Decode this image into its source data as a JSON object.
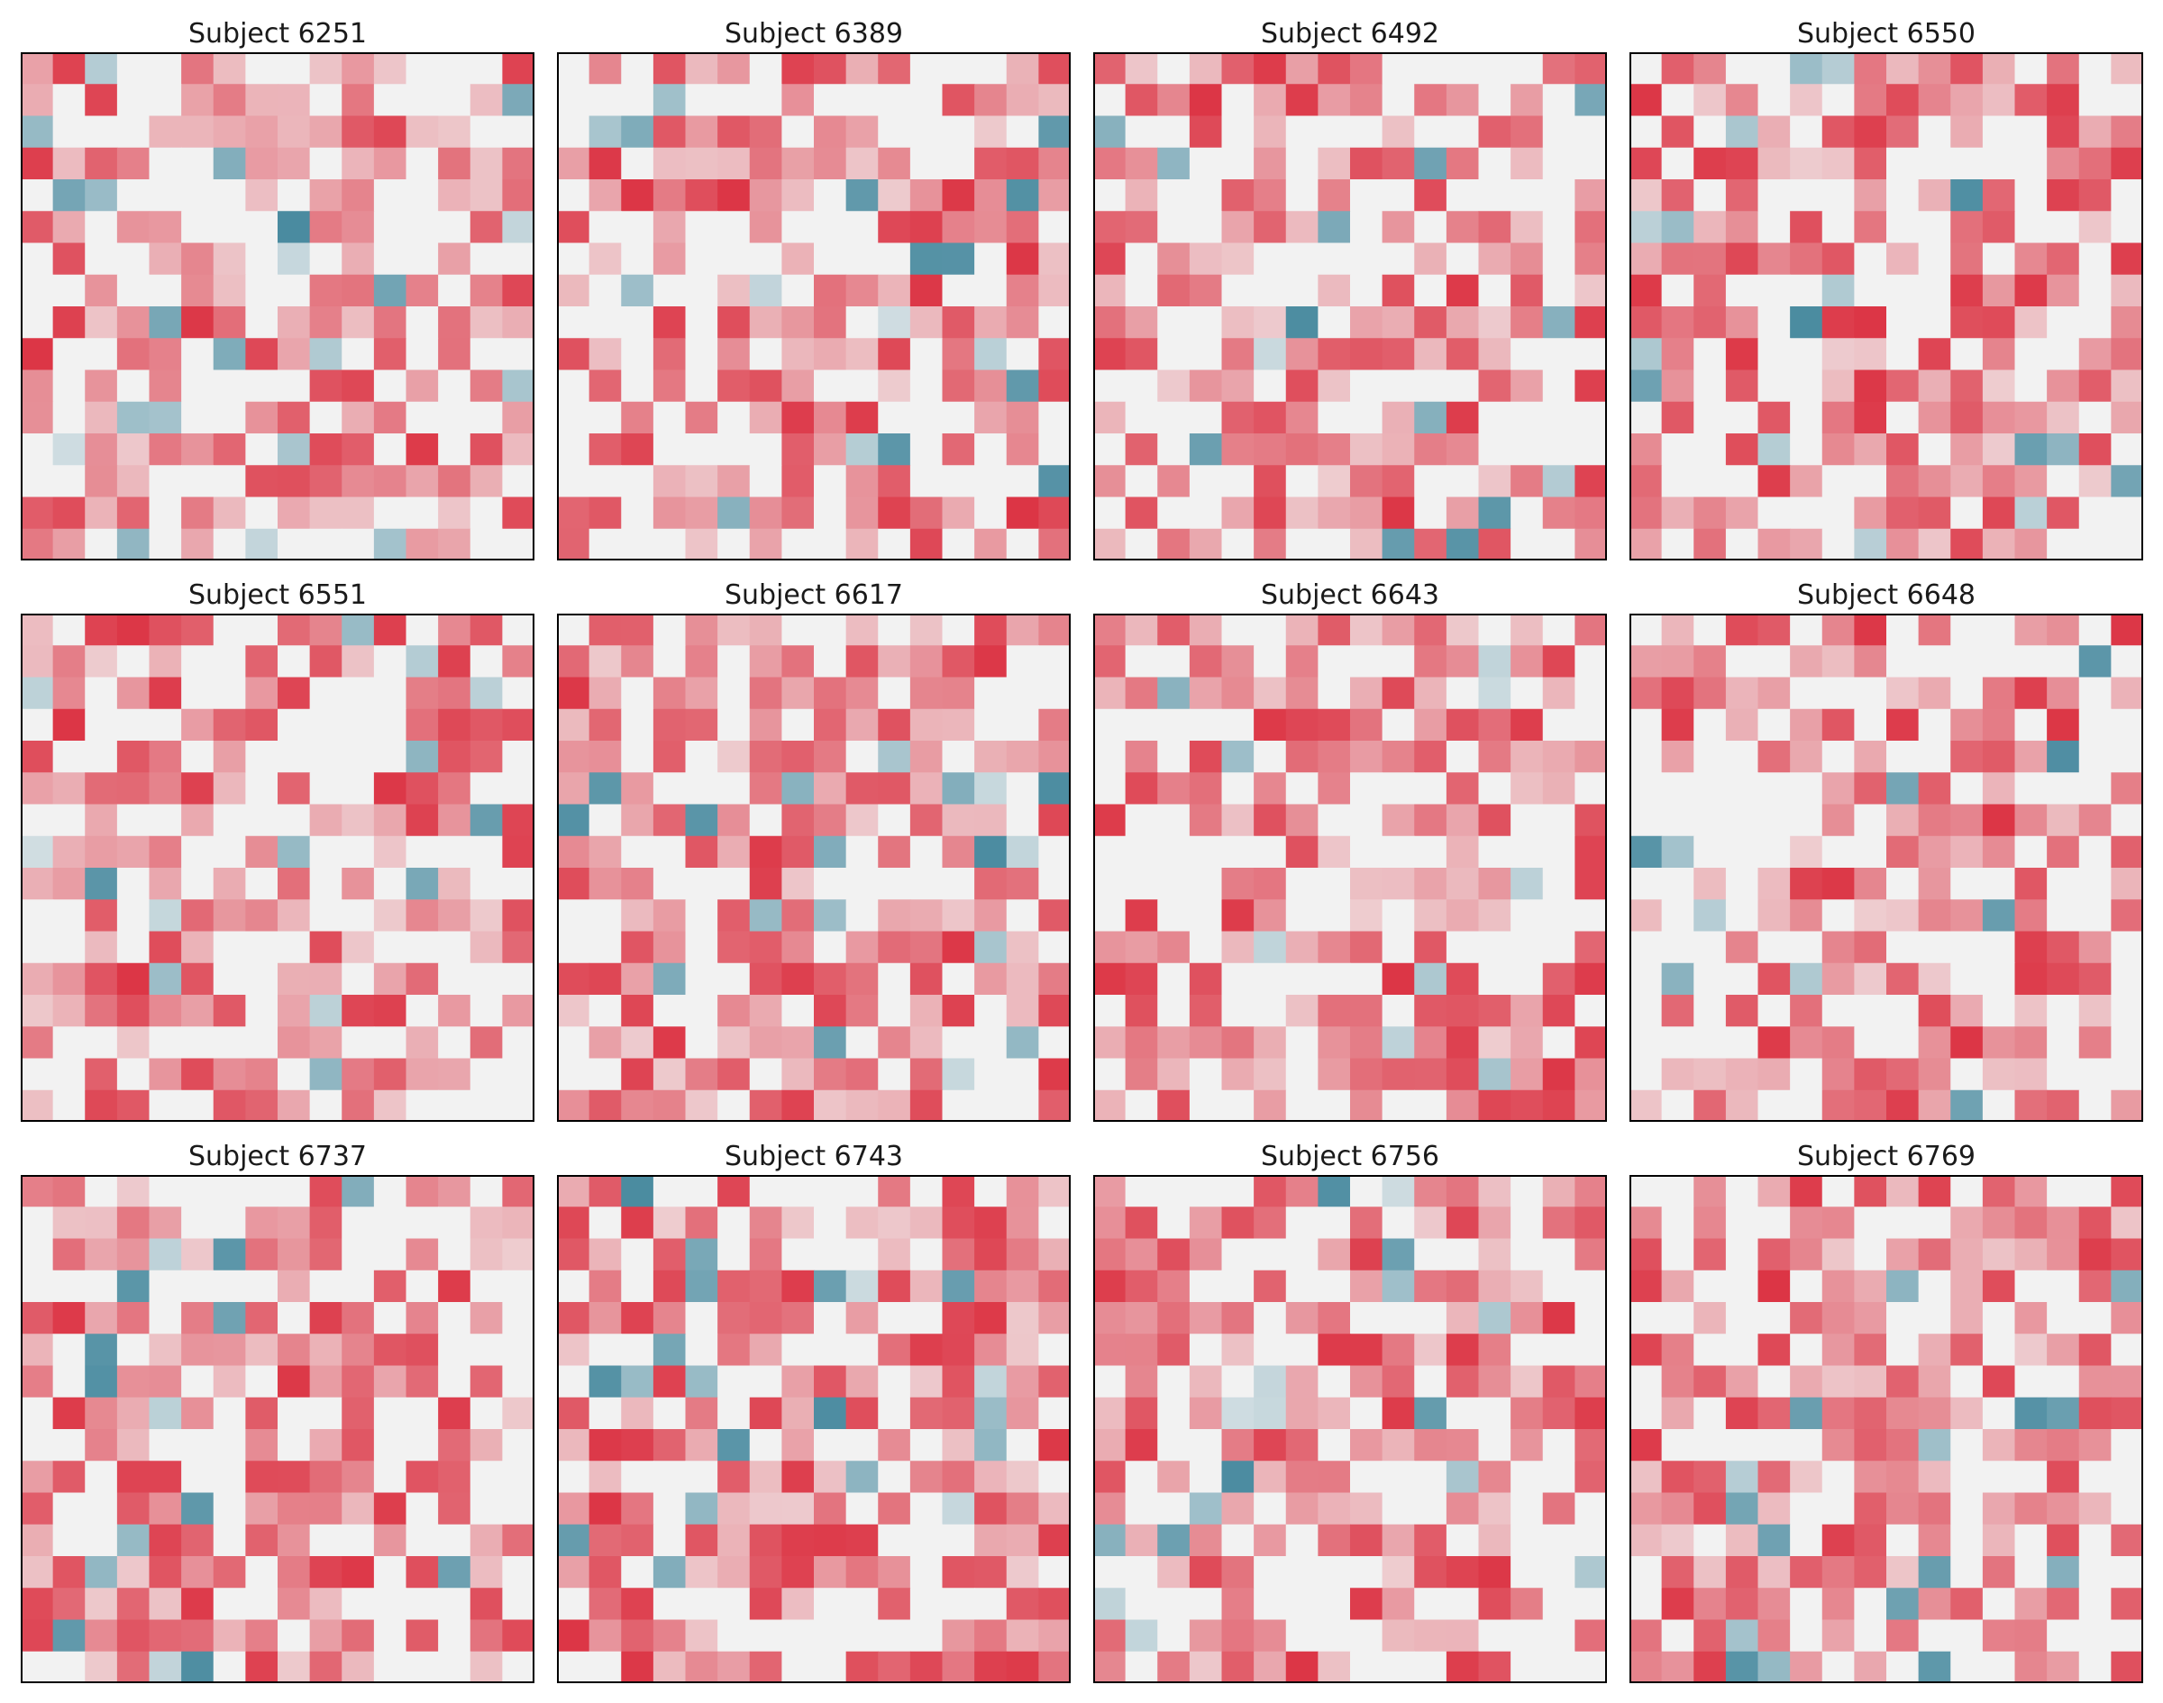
{
  "figure": {
    "colors": {
      "strong_negative": "#4a8ba0",
      "neutral": "#f2f2f2",
      "strong_positive": "#dc3545"
    }
  },
  "chart_data": [
    {
      "type": "heatmap",
      "title": "Subject 6251",
      "size": 16,
      "seed": 6251
    },
    {
      "type": "heatmap",
      "title": "Subject 6389",
      "size": 16,
      "seed": 6389
    },
    {
      "type": "heatmap",
      "title": "Subject 6492",
      "size": 16,
      "seed": 6492
    },
    {
      "type": "heatmap",
      "title": "Subject 6550",
      "size": 16,
      "seed": 6550
    },
    {
      "type": "heatmap",
      "title": "Subject 6551",
      "size": 16,
      "seed": 6551
    },
    {
      "type": "heatmap",
      "title": "Subject 6617",
      "size": 16,
      "seed": 6617
    },
    {
      "type": "heatmap",
      "title": "Subject 6643",
      "size": 16,
      "seed": 6643
    },
    {
      "type": "heatmap",
      "title": "Subject 6648",
      "size": 16,
      "seed": 6648
    },
    {
      "type": "heatmap",
      "title": "Subject 6737",
      "size": 16,
      "seed": 6737
    },
    {
      "type": "heatmap",
      "title": "Subject 6743",
      "size": 16,
      "seed": 6743
    },
    {
      "type": "heatmap",
      "title": "Subject 6756",
      "size": 16,
      "seed": 6756
    },
    {
      "type": "heatmap",
      "title": "Subject 6769",
      "size": 16,
      "seed": 6769
    }
  ]
}
